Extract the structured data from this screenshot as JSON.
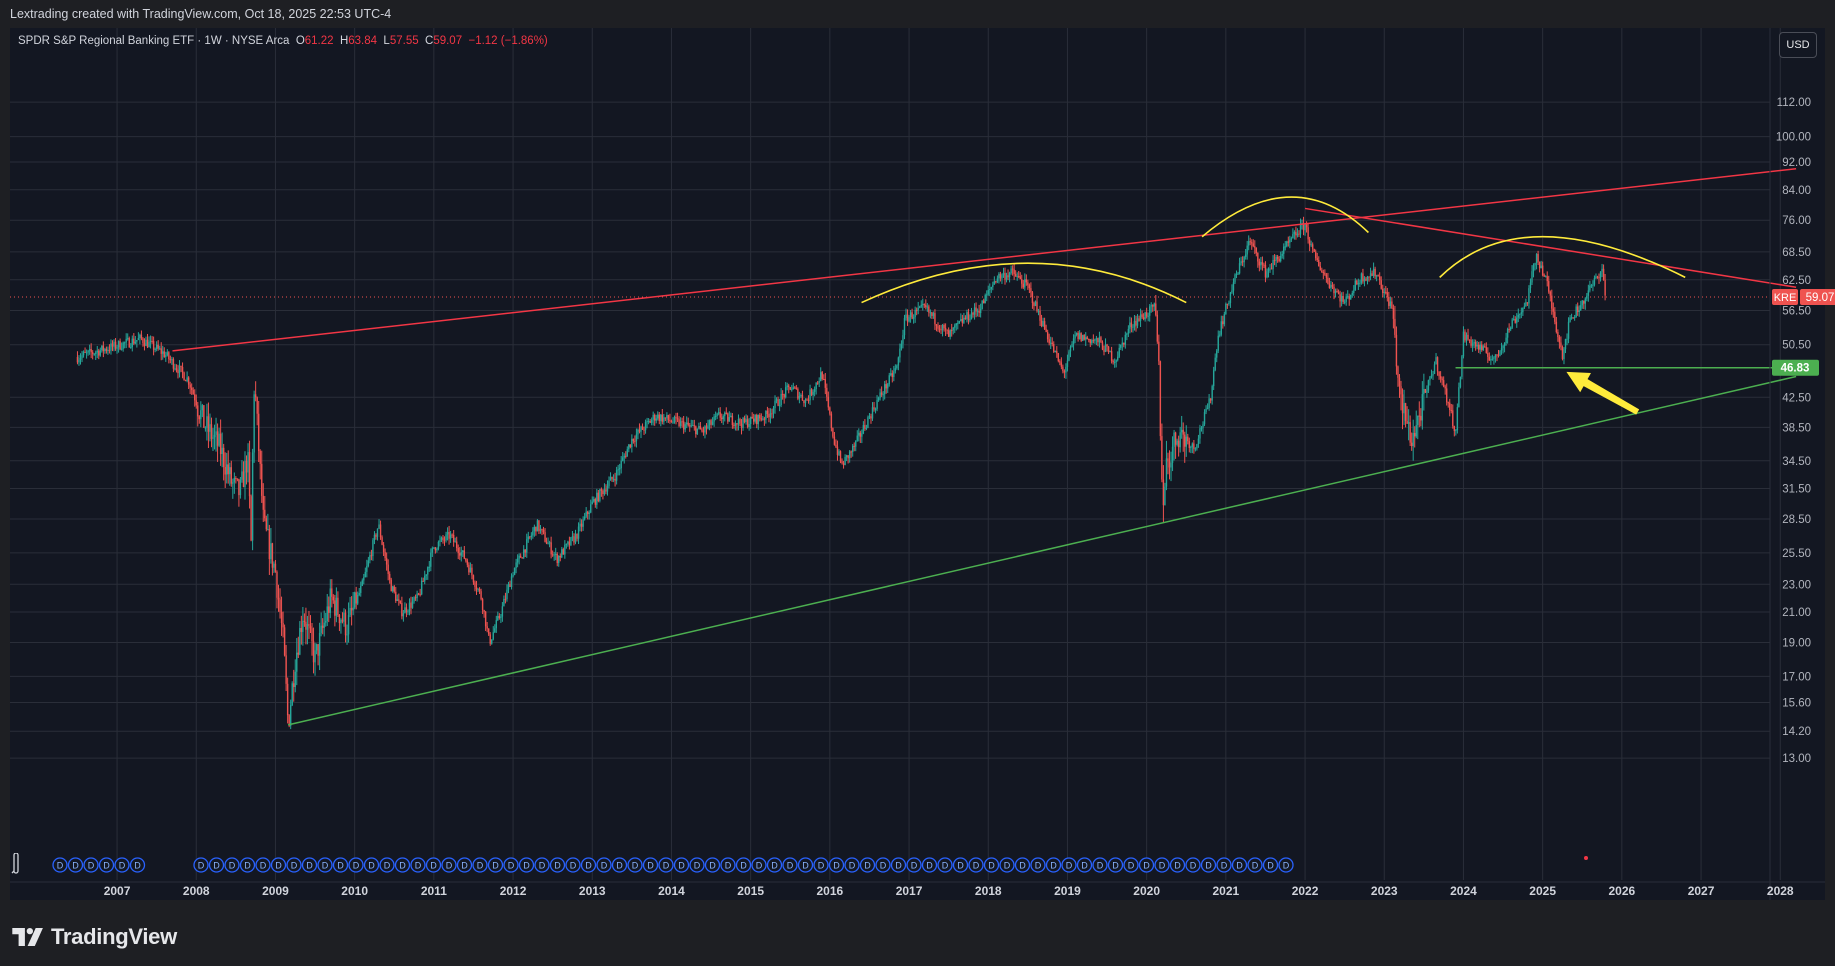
{
  "header": {
    "credit": "Lextrading created with TradingView.com, Oct 18, 2025 22:53 UTC-4"
  },
  "legend": {
    "symbol": "SPDR S&P Regional Banking ETF · 1W · NYSE Arca",
    "open_label": "O",
    "open": "61.22",
    "high_label": "H",
    "high": "63.84",
    "low_label": "L",
    "low": "57.55",
    "close_label": "C",
    "close": "59.07",
    "change": "−1.12 (−1.86%)"
  },
  "currency": "USD",
  "footer": {
    "brand": "TradingView"
  },
  "colors": {
    "background": "#131722",
    "grid": "#2a2e39",
    "up": "#26a69a",
    "down": "#ef5350",
    "resistance": "#f23645",
    "support": "#4caf50",
    "arc": "#ffeb3b"
  },
  "chart_data": {
    "type": "candlestick",
    "ticker": "KRE",
    "timeframe": "1W",
    "scale": "log",
    "grid": true,
    "y_ticks": [
      "112.00",
      "100.00",
      "92.00",
      "84.00",
      "76.00",
      "68.50",
      "62.50",
      "56.50",
      "50.50",
      "42.50",
      "38.50",
      "34.50",
      "31.50",
      "28.50",
      "25.50",
      "23.00",
      "21.00",
      "19.00",
      "17.00",
      "15.60",
      "14.20",
      "13.00"
    ],
    "x_ticks": [
      "2007",
      "2008",
      "2009",
      "2010",
      "2011",
      "2012",
      "2013",
      "2014",
      "2015",
      "2016",
      "2017",
      "2018",
      "2019",
      "2020",
      "2021",
      "2022",
      "2023",
      "2024",
      "2025",
      "2026",
      "2027",
      "2028"
    ],
    "last_price": "59.07",
    "last_price_label": "KRE",
    "support_level": "46.83",
    "price_path": [
      [
        2006.5,
        48.5
      ],
      [
        2006.9,
        50
      ],
      [
        2007.3,
        51.5
      ],
      [
        2007.6,
        49
      ],
      [
        2007.9,
        45
      ],
      [
        2008.1,
        39
      ],
      [
        2008.3,
        36
      ],
      [
        2008.45,
        32
      ],
      [
        2008.55,
        31
      ],
      [
        2008.65,
        35
      ],
      [
        2008.7,
        25
      ],
      [
        2008.72,
        45
      ],
      [
        2008.75,
        42
      ],
      [
        2008.85,
        28
      ],
      [
        2009.0,
        24
      ],
      [
        2009.1,
        19
      ],
      [
        2009.16,
        14.5
      ],
      [
        2009.25,
        18
      ],
      [
        2009.35,
        21
      ],
      [
        2009.5,
        18
      ],
      [
        2009.7,
        22
      ],
      [
        2009.9,
        20
      ],
      [
        2010.1,
        23
      ],
      [
        2010.3,
        28
      ],
      [
        2010.45,
        23
      ],
      [
        2010.6,
        21
      ],
      [
        2010.8,
        22
      ],
      [
        2011.0,
        26
      ],
      [
        2011.2,
        27
      ],
      [
        2011.4,
        25
      ],
      [
        2011.6,
        22
      ],
      [
        2011.7,
        19
      ],
      [
        2011.85,
        21
      ],
      [
        2012.0,
        24
      ],
      [
        2012.3,
        28
      ],
      [
        2012.55,
        25
      ],
      [
        2012.8,
        27
      ],
      [
        2013.0,
        30
      ],
      [
        2013.3,
        33
      ],
      [
        2013.5,
        37
      ],
      [
        2013.8,
        40
      ],
      [
        2014.1,
        39
      ],
      [
        2014.4,
        38
      ],
      [
        2014.6,
        40
      ],
      [
        2014.9,
        39
      ],
      [
        2015.2,
        40
      ],
      [
        2015.5,
        44
      ],
      [
        2015.7,
        42
      ],
      [
        2015.9,
        46
      ],
      [
        2016.05,
        37
      ],
      [
        2016.15,
        34
      ],
      [
        2016.3,
        36
      ],
      [
        2016.6,
        42
      ],
      [
        2016.85,
        47
      ],
      [
        2016.95,
        55
      ],
      [
        2017.2,
        57
      ],
      [
        2017.5,
        52
      ],
      [
        2017.7,
        55
      ],
      [
        2017.9,
        57
      ],
      [
        2018.1,
        63
      ],
      [
        2018.3,
        64
      ],
      [
        2018.5,
        61
      ],
      [
        2018.75,
        52
      ],
      [
        2018.95,
        46
      ],
      [
        2019.1,
        52
      ],
      [
        2019.4,
        51
      ],
      [
        2019.6,
        48
      ],
      [
        2019.8,
        54
      ],
      [
        2020.1,
        57
      ],
      [
        2020.15,
        48
      ],
      [
        2020.2,
        30
      ],
      [
        2020.25,
        34
      ],
      [
        2020.4,
        38
      ],
      [
        2020.6,
        36
      ],
      [
        2020.8,
        42
      ],
      [
        2020.9,
        52
      ],
      [
        2021.1,
        62
      ],
      [
        2021.3,
        71
      ],
      [
        2021.5,
        64
      ],
      [
        2021.7,
        68
      ],
      [
        2021.9,
        73
      ],
      [
        2022.0,
        75
      ],
      [
        2022.1,
        68
      ],
      [
        2022.3,
        62
      ],
      [
        2022.5,
        58
      ],
      [
        2022.7,
        63
      ],
      [
        2022.9,
        64
      ],
      [
        2023.0,
        60
      ],
      [
        2023.1,
        57
      ],
      [
        2023.2,
        42
      ],
      [
        2023.35,
        37
      ],
      [
        2023.5,
        42
      ],
      [
        2023.65,
        48
      ],
      [
        2023.8,
        42
      ],
      [
        2023.9,
        38
      ],
      [
        2024.0,
        52
      ],
      [
        2024.2,
        50
      ],
      [
        2024.4,
        48
      ],
      [
        2024.6,
        54
      ],
      [
        2024.8,
        58
      ],
      [
        2024.92,
        68
      ],
      [
        2025.05,
        62
      ],
      [
        2025.15,
        55
      ],
      [
        2025.25,
        49
      ],
      [
        2025.35,
        55
      ],
      [
        2025.5,
        58
      ],
      [
        2025.65,
        62
      ],
      [
        2025.75,
        65
      ],
      [
        2025.79,
        59.07
      ]
    ],
    "trendlines": [
      {
        "kind": "resistance",
        "from": [
          2007.7,
          49.5
        ],
        "to": [
          2028.2,
          90
        ]
      },
      {
        "kind": "resistance",
        "from": [
          2022.0,
          79
        ],
        "to": [
          2028.2,
          61
        ]
      },
      {
        "kind": "support",
        "from": [
          2009.16,
          14.5
        ],
        "to": [
          2028.2,
          45.5
        ]
      },
      {
        "kind": "support",
        "from": [
          2023.9,
          46.83
        ],
        "to": [
          2028.2,
          46.83
        ]
      }
    ],
    "arcs": [
      {
        "from": [
          2016.4,
          58
        ],
        "peak": [
          2018.5,
          66
        ],
        "to": [
          2020.5,
          58
        ]
      },
      {
        "from": [
          2020.7,
          72
        ],
        "peak": [
          2021.8,
          82
        ],
        "to": [
          2022.8,
          73
        ]
      },
      {
        "from": [
          2023.7,
          63
        ],
        "peak": [
          2025.0,
          72
        ],
        "to": [
          2026.8,
          63
        ]
      }
    ],
    "arrow": {
      "from": [
        2026.2,
        40.5
      ],
      "to": [
        2025.3,
        46.2
      ]
    },
    "dividend_markers_2007": 6,
    "dividend_markers": 71
  }
}
